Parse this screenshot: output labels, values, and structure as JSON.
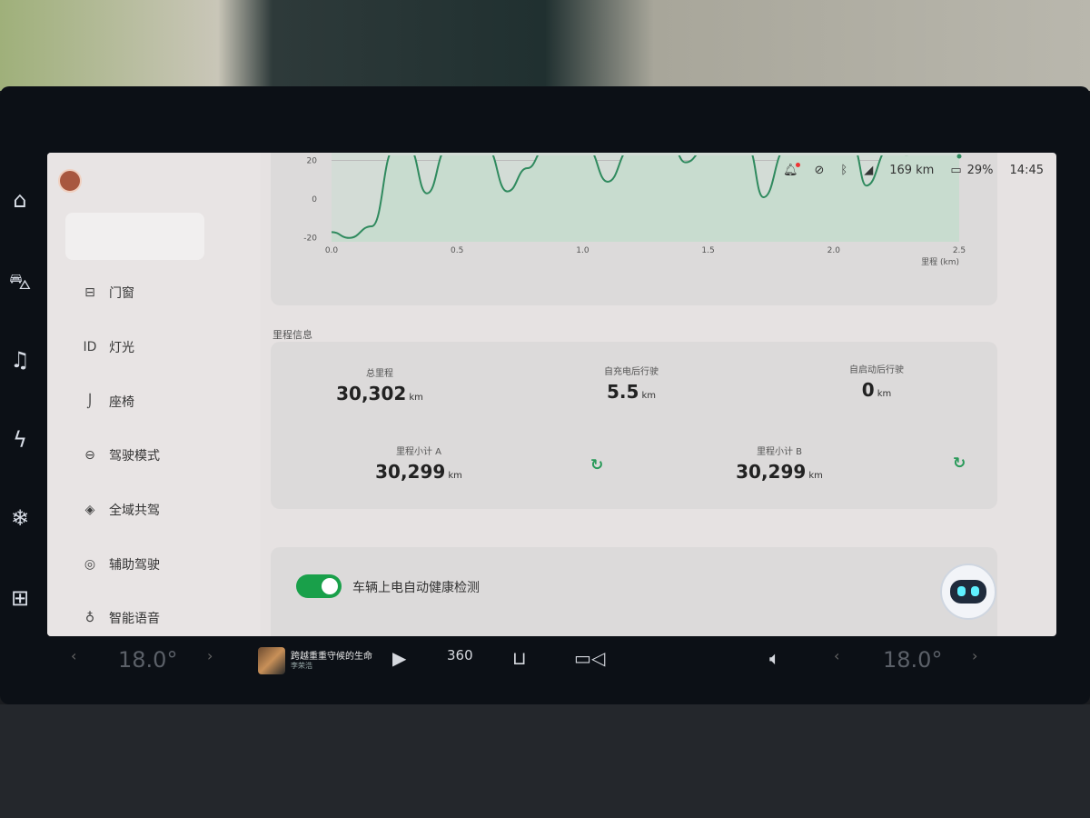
{
  "status_bar": {
    "range": "169 km",
    "battery": "29%",
    "time": "14:45",
    "icons": [
      "bell-icon",
      "camera-off-icon",
      "bluetooth-icon",
      "4g-signal-icon",
      "battery-icon"
    ]
  },
  "left_rail": [
    "home-icon",
    "car-icon",
    "music-icon",
    "energy-icon",
    "fan-icon",
    "apps-icon"
  ],
  "sidebar": {
    "items": [
      {
        "label": "门窗",
        "icon": "door-icon"
      },
      {
        "label": "灯光",
        "icon": "light-icon"
      },
      {
        "label": "座椅",
        "icon": "seat-icon"
      },
      {
        "label": "驾驶模式",
        "icon": "steering-icon"
      },
      {
        "label": "全域共驾",
        "icon": "copilot-icon"
      },
      {
        "label": "辅助驾驶",
        "icon": "assist-icon"
      },
      {
        "label": "智能语音",
        "icon": "mic-icon"
      }
    ]
  },
  "chart_data": {
    "type": "line",
    "xlabel": "里程 (km)",
    "xlim": [
      0,
      2.5
    ],
    "ylim": [
      -22,
      24
    ],
    "xticks": [
      "0.0",
      "0.5",
      "1.0",
      "1.5",
      "2.0",
      "2.5"
    ],
    "yticks": [
      "20",
      "0",
      "-20"
    ],
    "color": "#2f8a5e",
    "points": [
      [
        0,
        -17
      ],
      [
        0.07,
        -20
      ],
      [
        0.16,
        -14
      ],
      [
        0.25,
        26
      ],
      [
        0.31,
        26
      ],
      [
        0.38,
        3
      ],
      [
        0.46,
        26
      ],
      [
        0.62,
        26
      ],
      [
        0.7,
        4
      ],
      [
        0.78,
        16
      ],
      [
        0.85,
        26
      ],
      [
        1.02,
        26
      ],
      [
        1.1,
        9
      ],
      [
        1.19,
        26
      ],
      [
        1.36,
        26
      ],
      [
        1.41,
        19
      ],
      [
        1.49,
        26
      ],
      [
        1.66,
        26
      ],
      [
        1.72,
        1
      ],
      [
        1.81,
        26
      ],
      [
        2.08,
        26
      ],
      [
        2.13,
        7
      ],
      [
        2.22,
        26
      ],
      [
        2.29,
        23
      ],
      [
        2.35,
        26
      ],
      [
        2.5,
        26
      ]
    ]
  },
  "mileage": {
    "title": "里程信息",
    "unit": "km",
    "total": {
      "label": "总里程",
      "value": "30,302"
    },
    "since_charge": {
      "label": "自充电后行驶",
      "value": "5.5"
    },
    "since_start": {
      "label": "自启动后行驶",
      "value": "0"
    },
    "trip_a": {
      "label": "里程小计 A",
      "value": "30,299"
    },
    "trip_b": {
      "label": "里程小计 B",
      "value": "30,299"
    }
  },
  "settings": {
    "auto_health_check": {
      "label": "车辆上电自动健康检测",
      "on": true
    }
  },
  "bottom_bar": {
    "temp_left": "18.0°",
    "temp_right": "18.0°",
    "song_title": "跨越重重守候的生命",
    "song_artist": "李荣浩",
    "view_360": "360"
  },
  "accent": "#19a04a"
}
